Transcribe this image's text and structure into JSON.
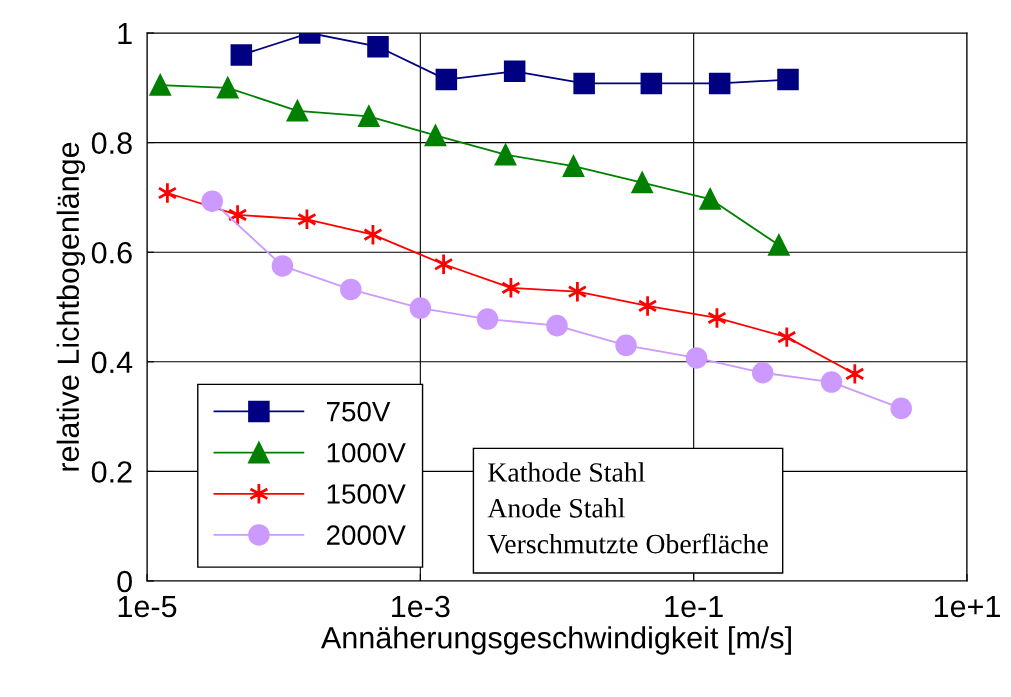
{
  "chart_data": {
    "type": "line",
    "xlabel": "Annäherungsgeschwindigkeit [m/s]",
    "ylabel": "relative Lichtbogenlänge",
    "log": "x",
    "xlim": [
      1e-05,
      10
    ],
    "xticks": [
      {
        "value": 1e-05,
        "label": "1e-5"
      },
      {
        "value": 0.001,
        "label": "1e-3"
      },
      {
        "value": 0.1,
        "label": "1e-1"
      },
      {
        "value": 10,
        "label": "1e+1"
      }
    ],
    "ylim": [
      0,
      1
    ],
    "yticks": [
      0,
      0.2,
      0.4,
      0.6,
      0.8,
      1
    ],
    "grid": true,
    "legend": "bottom left",
    "annotations": [
      "Kathode Stahl\nAnode Stahl\nVerschmutzte Oberfläche"
    ],
    "series": [
      {
        "name": "750V",
        "color": "#000080",
        "marker": "square",
        "x": [
          4.9e-05,
          0.000155,
          0.00049,
          0.00155,
          0.0049,
          0.0158,
          0.049,
          0.155,
          0.49
        ],
        "values": [
          0.96,
          1.0,
          0.975,
          0.915,
          0.93,
          0.908,
          0.908,
          0.908,
          0.915
        ]
      },
      {
        "name": "1000V",
        "color": "#008000",
        "marker": "triangle",
        "x": [
          1.25e-05,
          3.9e-05,
          0.000126,
          0.00042,
          0.00129,
          0.0042,
          0.0132,
          0.042,
          0.132,
          0.42
        ],
        "values": [
          0.905,
          0.9,
          0.858,
          0.848,
          0.813,
          0.778,
          0.757,
          0.727,
          0.697,
          0.613
        ]
      },
      {
        "name": "1500V",
        "color": "#ff0000",
        "marker": "cross",
        "x": [
          1.41e-05,
          4.6e-05,
          0.000148,
          0.00045,
          0.00148,
          0.0046,
          0.0141,
          0.046,
          0.148,
          0.48,
          1.51
        ],
        "values": [
          0.708,
          0.668,
          0.66,
          0.632,
          0.578,
          0.535,
          0.528,
          0.502,
          0.48,
          0.445,
          0.378
        ]
      },
      {
        "name": "2000V",
        "color": "#cc99ff",
        "marker": "circle",
        "x": [
          3e-05,
          9.8e-05,
          0.00031,
          0.001,
          0.0031,
          0.01,
          0.032,
          0.105,
          0.32,
          1.02,
          3.3
        ],
        "values": [
          0.693,
          0.575,
          0.532,
          0.498,
          0.478,
          0.466,
          0.43,
          0.407,
          0.38,
          0.363,
          0.315
        ]
      }
    ]
  }
}
